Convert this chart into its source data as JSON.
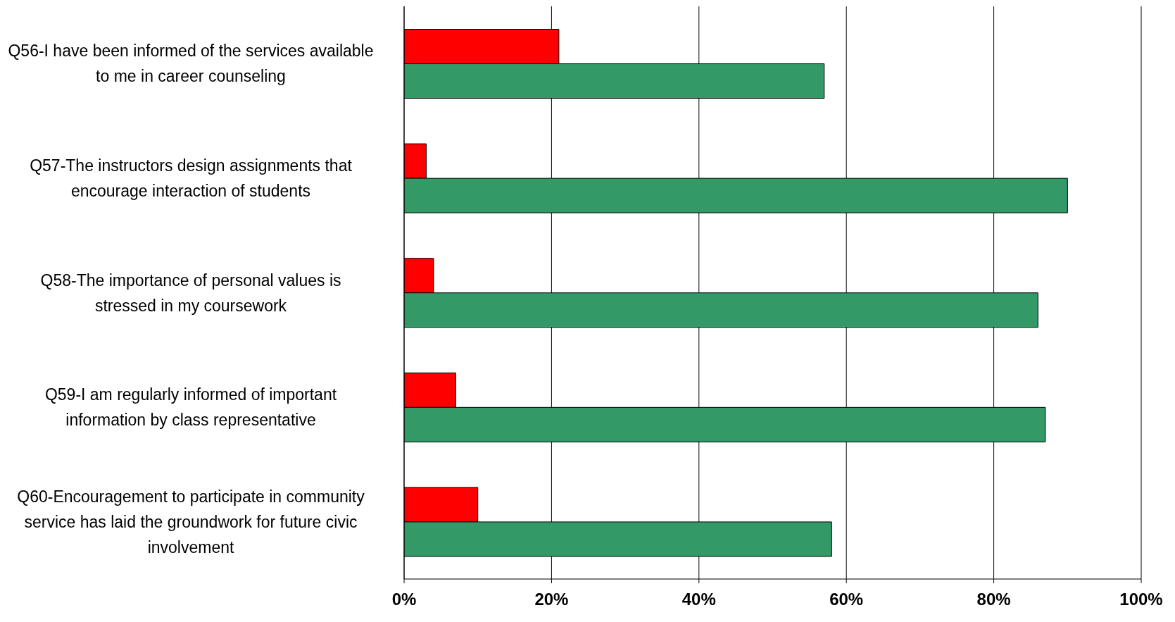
{
  "chart_data": {
    "type": "bar",
    "orientation": "horizontal",
    "categories": [
      "Q56-I have been informed of the services available to me in career counseling",
      "Q57-The instructors design assignments that encourage interaction of students",
      "Q58-The importance of personal values is stressed in my coursework",
      "Q59-I am regularly informed of important information by class representative",
      "Q60-Encouragement to participate in community service has laid the groundwork for future civic involvement"
    ],
    "series": [
      {
        "color": "#ff0000",
        "values": [
          21,
          3,
          4,
          7,
          10
        ]
      },
      {
        "color": "#339966",
        "values": [
          57,
          90,
          86,
          87,
          58
        ]
      }
    ],
    "xlim": [
      0,
      100
    ],
    "xticks": [
      {
        "value": 0,
        "label": "0%"
      },
      {
        "value": 20,
        "label": "20%"
      },
      {
        "value": 40,
        "label": "40%"
      },
      {
        "value": 60,
        "label": "60%"
      },
      {
        "value": 80,
        "label": "80%"
      },
      {
        "value": 100,
        "label": "100%"
      }
    ],
    "grid": "x"
  }
}
